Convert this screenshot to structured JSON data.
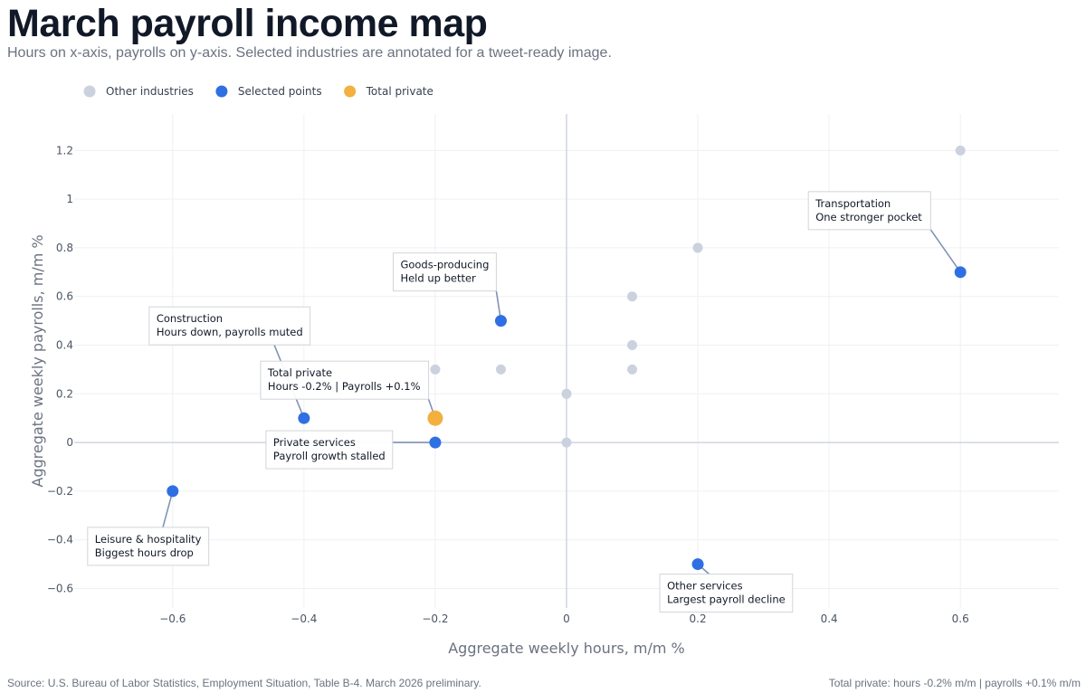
{
  "title": "March payroll income map",
  "subtitle": "Hours on x-axis, payrolls on y-axis. Selected industries are annotated for a tweet-ready image.",
  "footer": {
    "source": "Source: U.S. Bureau of Labor Statistics, Employment Situation, Table B-4. March 2026 preliminary.",
    "summary": "Total private: hours -0.2% m/m | payrolls +0.1% m/m"
  },
  "colors": {
    "other": "#cbd2de",
    "selected": "#2f6fe4",
    "total": "#f2b13f",
    "grid": "#eef0f4",
    "zeroline": "#cfd5e3",
    "connector": "#8194b4",
    "annotation_border": "#d1d5db"
  },
  "chart_data": {
    "type": "scatter",
    "title": "March payroll income map",
    "xlabel": "Aggregate weekly hours, m/m %",
    "ylabel": "Aggregate weekly payrolls, m/m %",
    "xlim": [
      -0.75,
      0.75
    ],
    "ylim": [
      -0.68,
      1.35
    ],
    "xticks": [
      -0.6,
      -0.4,
      -0.2,
      0,
      0.2,
      0.4,
      0.6
    ],
    "xtick_labels": [
      "−0.6",
      "−0.4",
      "−0.2",
      "0",
      "0.2",
      "0.4",
      "0.6"
    ],
    "yticks": [
      -0.6,
      -0.4,
      -0.2,
      0,
      0.2,
      0.4,
      0.6,
      0.8,
      1,
      1.2
    ],
    "ytick_labels": [
      "−0.6",
      "−0.4",
      "−0.2",
      "0",
      "0.2",
      "0.4",
      "0.6",
      "0.8",
      "1",
      "1.2"
    ],
    "grid": true,
    "legend": {
      "position": "top-left",
      "entries": [
        "Other industries",
        "Selected points",
        "Total private"
      ]
    },
    "series": [
      {
        "name": "Other industries",
        "points": [
          {
            "x": -0.2,
            "y": 0.3
          },
          {
            "x": -0.1,
            "y": 0.3
          },
          {
            "x": 0,
            "y": 0.2
          },
          {
            "x": 0,
            "y": 0
          },
          {
            "x": 0.1,
            "y": 0.6
          },
          {
            "x": 0.1,
            "y": 0.4
          },
          {
            "x": 0.1,
            "y": 0.3
          },
          {
            "x": 0.2,
            "y": 0.8
          },
          {
            "x": 0.6,
            "y": 1.2
          }
        ]
      },
      {
        "name": "Selected points",
        "points": [
          {
            "x": -0.6,
            "y": -0.2,
            "label": [
              "Leisure & hospitality",
              "Biggest hours drop"
            ]
          },
          {
            "x": -0.4,
            "y": 0.1,
            "label": [
              "Construction",
              "Hours down, payrolls muted"
            ]
          },
          {
            "x": -0.2,
            "y": 0.0,
            "label": [
              "Private services",
              "Payroll growth stalled"
            ]
          },
          {
            "x": -0.1,
            "y": 0.5,
            "label": [
              "Goods-producing",
              "Held up better"
            ]
          },
          {
            "x": 0.2,
            "y": -0.5,
            "label": [
              "Other services",
              "Largest payroll decline"
            ]
          },
          {
            "x": 0.6,
            "y": 0.7,
            "label": [
              "Transportation",
              "One stronger pocket"
            ]
          }
        ]
      },
      {
        "name": "Total private",
        "points": [
          {
            "x": -0.2,
            "y": 0.1,
            "label": [
              "Total private",
              "Hours -0.2% | Payrolls +0.1%"
            ]
          }
        ]
      }
    ]
  }
}
